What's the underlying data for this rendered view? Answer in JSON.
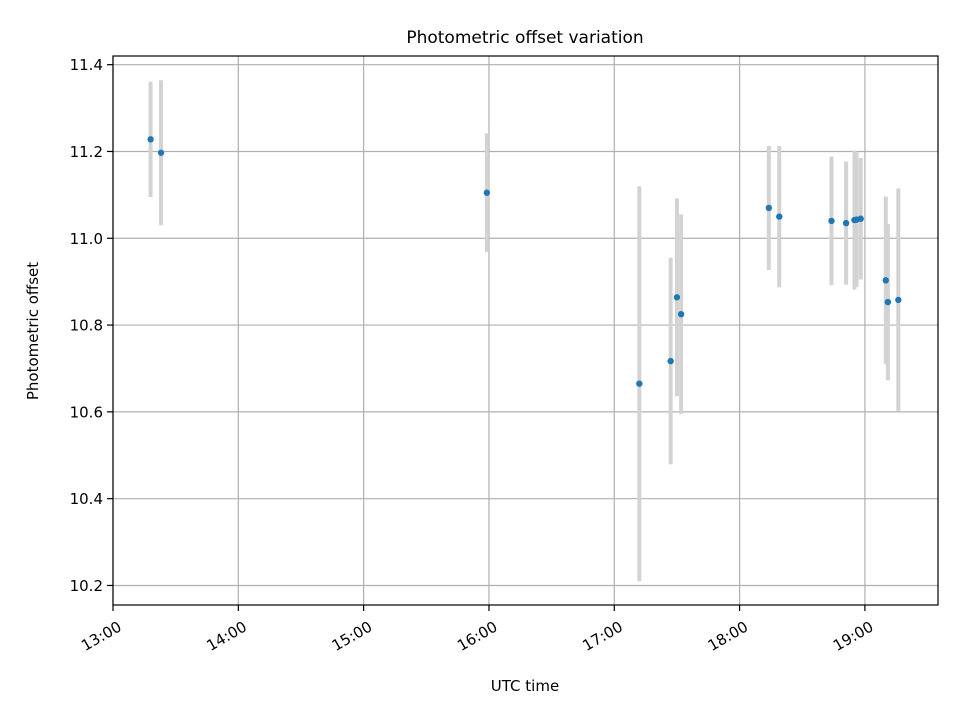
{
  "chart_data": {
    "type": "scatter",
    "title": "Photometric offset variation",
    "xlabel": "UTC time",
    "ylabel": "Photometric offset",
    "x_tick_labels": [
      "13:00",
      "14:00",
      "15:00",
      "16:00",
      "17:00",
      "18:00",
      "19:00"
    ],
    "y_tick_labels": [
      "10.2",
      "10.4",
      "10.6",
      "10.8",
      "11.0",
      "11.2",
      "11.4"
    ],
    "x_ticks": [
      "13:00",
      "14:00",
      "15:00",
      "16:00",
      "17:00",
      "18:00",
      "19:00"
    ],
    "y_ticks": [
      10.2,
      10.4,
      10.6,
      10.8,
      11.0,
      11.2,
      11.4
    ],
    "xlim": [
      "13:00",
      "19:35"
    ],
    "ylim": [
      10.155,
      11.42
    ],
    "grid": true,
    "x_tick_rotation_deg": 30,
    "colors": {
      "point": "#1f77b4",
      "errorbar": "#d3d3d3",
      "grid": "#b0b0b0"
    },
    "points": [
      {
        "x": "13:18",
        "y": 11.228,
        "err": 0.133
      },
      {
        "x": "13:23",
        "y": 11.197,
        "err": 0.167
      },
      {
        "x": "15:59",
        "y": 11.105,
        "err": 0.137
      },
      {
        "x": "17:12",
        "y": 10.665,
        "err": 0.455
      },
      {
        "x": "17:27",
        "y": 10.717,
        "err": 0.238
      },
      {
        "x": "17:30",
        "y": 10.864,
        "err": 0.228
      },
      {
        "x": "17:32",
        "y": 10.825,
        "err": 0.23
      },
      {
        "x": "18:14",
        "y": 11.07,
        "err": 0.143
      },
      {
        "x": "18:19",
        "y": 11.05,
        "err": 0.163
      },
      {
        "x": "18:44",
        "y": 11.04,
        "err": 0.148
      },
      {
        "x": "18:51",
        "y": 11.035,
        "err": 0.142
      },
      {
        "x": "18:55",
        "y": 11.042,
        "err": 0.16
      },
      {
        "x": "18:56",
        "y": 11.043,
        "err": 0.155
      },
      {
        "x": "18:58",
        "y": 11.045,
        "err": 0.14
      },
      {
        "x": "19:10",
        "y": 10.903,
        "err": 0.193
      },
      {
        "x": "19:11",
        "y": 10.853,
        "err": 0.18
      },
      {
        "x": "19:16",
        "y": 10.858,
        "err": 0.257
      }
    ]
  }
}
